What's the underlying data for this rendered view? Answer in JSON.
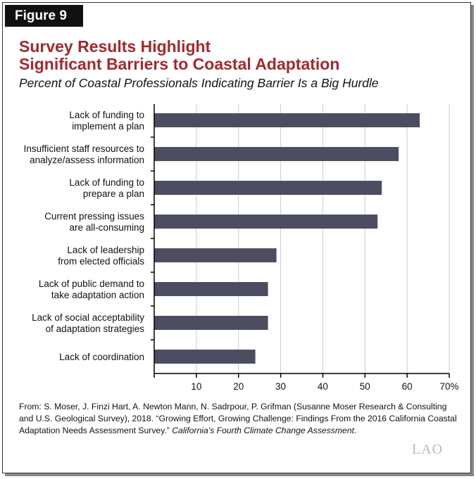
{
  "figure_label": "Figure 9",
  "title_lines": [
    "Survey Results Highlight",
    "Significant Barriers to Coastal Adaptation"
  ],
  "subtitle": "Percent of Coastal Professionals Indicating Barrier Is a Big Hurdle",
  "chart_data": {
    "type": "bar",
    "orientation": "horizontal",
    "categories": [
      [
        "Lack of funding to",
        "implement a plan"
      ],
      [
        "Insufficient staff resources to",
        "analyze/assess information"
      ],
      [
        "Lack of funding to",
        "prepare a plan"
      ],
      [
        "Current pressing issues",
        "are all-consuming"
      ],
      [
        "Lack of leadership",
        "from elected officials"
      ],
      [
        "Lack of public demand to",
        "take adaptation action"
      ],
      [
        "Lack of social acceptability",
        "of adaptation strategies"
      ],
      [
        "Lack of coordination"
      ]
    ],
    "values": [
      63,
      58,
      54,
      53,
      29,
      27,
      27,
      24
    ],
    "xlim": [
      0,
      70
    ],
    "xticks": [
      "10",
      "20",
      "30",
      "40",
      "50",
      "60",
      "70%"
    ],
    "grid": true,
    "bar_color": "#4d4d62"
  },
  "source": {
    "text": "From: S. Moser, J. Finzi Hart, A. Newton Mann, N. Sadrpour, P. Grifman (Susanne Moser Research & Consulting and U.S. Geological Survey), 2018. “Growing Effort, Growing Challenge: Findings From the 2016 California Coastal Adaptation Needs Assessment Survey.” ",
    "italic": "California’s Fourth Climate Change Assessment",
    "end": "."
  },
  "logo": "LAO"
}
